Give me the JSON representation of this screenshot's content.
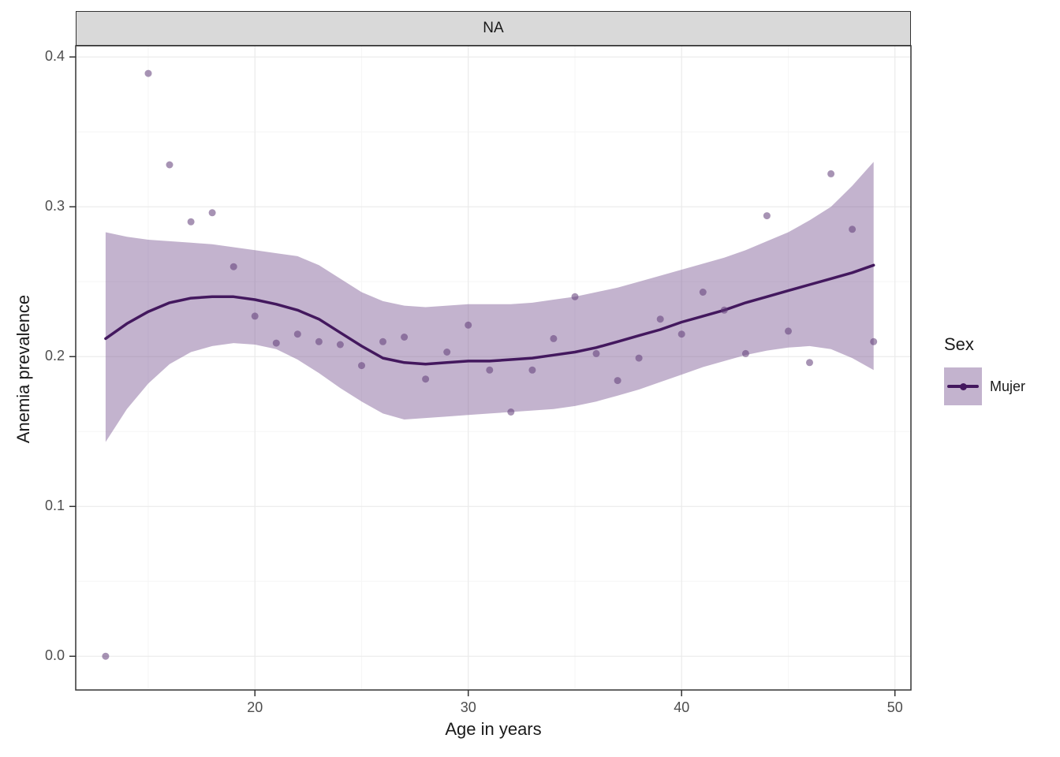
{
  "chart_data": {
    "type": "scatter",
    "facet_label": "NA",
    "xlabel": "Age in years",
    "ylabel": "Anemia prevalence",
    "x_range": [
      11.6,
      50.75
    ],
    "y_range": [
      -0.0225,
      0.4075
    ],
    "x_ticks": [
      {
        "v": 20,
        "label": "20"
      },
      {
        "v": 30,
        "label": "30"
      },
      {
        "v": 40,
        "label": "40"
      },
      {
        "v": 50,
        "label": "50"
      }
    ],
    "y_ticks": [
      {
        "v": 0.0,
        "label": "0.0"
      },
      {
        "v": 0.1,
        "label": "0.1"
      },
      {
        "v": 0.2,
        "label": "0.2"
      },
      {
        "v": 0.3,
        "label": "0.3"
      },
      {
        "v": 0.4,
        "label": "0.4"
      }
    ],
    "x_minor": [
      15,
      25,
      35,
      45
    ],
    "y_minor": [
      0.05,
      0.15,
      0.25,
      0.35
    ],
    "legend": {
      "title": "Sex",
      "position": "right",
      "entries": [
        {
          "label": "Mujer"
        }
      ]
    },
    "series": [
      {
        "name": "Mujer",
        "points": [
          [
            13,
            0.0
          ],
          [
            15,
            0.389
          ],
          [
            16,
            0.328
          ],
          [
            17,
            0.29
          ],
          [
            18,
            0.296
          ],
          [
            19,
            0.26
          ],
          [
            20,
            0.227
          ],
          [
            21,
            0.209
          ],
          [
            22,
            0.215
          ],
          [
            23,
            0.21
          ],
          [
            24,
            0.208
          ],
          [
            25,
            0.194
          ],
          [
            26,
            0.21
          ],
          [
            27,
            0.213
          ],
          [
            28,
            0.185
          ],
          [
            29,
            0.203
          ],
          [
            30,
            0.221
          ],
          [
            31,
            0.191
          ],
          [
            32,
            0.163
          ],
          [
            33,
            0.191
          ],
          [
            34,
            0.212
          ],
          [
            35,
            0.24
          ],
          [
            36,
            0.202
          ],
          [
            37,
            0.184
          ],
          [
            38,
            0.199
          ],
          [
            39,
            0.225
          ],
          [
            40,
            0.215
          ],
          [
            41,
            0.243
          ],
          [
            42,
            0.231
          ],
          [
            43,
            0.202
          ],
          [
            44,
            0.294
          ],
          [
            45,
            0.217
          ],
          [
            46,
            0.196
          ],
          [
            47,
            0.322
          ],
          [
            48,
            0.285
          ],
          [
            49,
            0.21
          ]
        ]
      }
    ],
    "smooth": {
      "x": [
        13,
        14,
        15,
        16,
        17,
        18,
        19,
        20,
        21,
        22,
        23,
        24,
        25,
        26,
        27,
        28,
        29,
        30,
        31,
        32,
        33,
        34,
        35,
        36,
        37,
        38,
        39,
        40,
        41,
        42,
        43,
        44,
        45,
        46,
        47,
        48,
        49
      ],
      "fit": [
        0.212,
        0.222,
        0.23,
        0.236,
        0.239,
        0.24,
        0.24,
        0.238,
        0.235,
        0.231,
        0.225,
        0.216,
        0.207,
        0.199,
        0.196,
        0.195,
        0.196,
        0.197,
        0.197,
        0.198,
        0.199,
        0.201,
        0.203,
        0.206,
        0.21,
        0.214,
        0.218,
        0.223,
        0.227,
        0.231,
        0.236,
        0.24,
        0.244,
        0.248,
        0.252,
        0.256,
        0.261
      ],
      "lower": [
        0.143,
        0.165,
        0.182,
        0.195,
        0.203,
        0.207,
        0.209,
        0.208,
        0.205,
        0.198,
        0.189,
        0.179,
        0.17,
        0.162,
        0.158,
        0.159,
        0.16,
        0.161,
        0.162,
        0.163,
        0.164,
        0.165,
        0.167,
        0.17,
        0.174,
        0.178,
        0.183,
        0.188,
        0.193,
        0.197,
        0.201,
        0.204,
        0.206,
        0.207,
        0.205,
        0.199,
        0.191
      ],
      "upper": [
        0.283,
        0.28,
        0.278,
        0.277,
        0.276,
        0.275,
        0.273,
        0.271,
        0.269,
        0.267,
        0.261,
        0.252,
        0.243,
        0.237,
        0.234,
        0.233,
        0.234,
        0.235,
        0.235,
        0.235,
        0.236,
        0.238,
        0.24,
        0.243,
        0.246,
        0.25,
        0.254,
        0.258,
        0.262,
        0.266,
        0.271,
        0.277,
        0.283,
        0.291,
        0.3,
        0.314,
        0.33
      ]
    },
    "colors": {
      "line": "#43185e",
      "point": "#5e3a77",
      "ribbon": "#7b5693",
      "grid_major": "#ebebeb",
      "grid_minor": "#f6f6f6",
      "panel_border": "#333333",
      "tick_label": "#4d4d4d",
      "strip_bg": "#d9d9d9"
    }
  }
}
